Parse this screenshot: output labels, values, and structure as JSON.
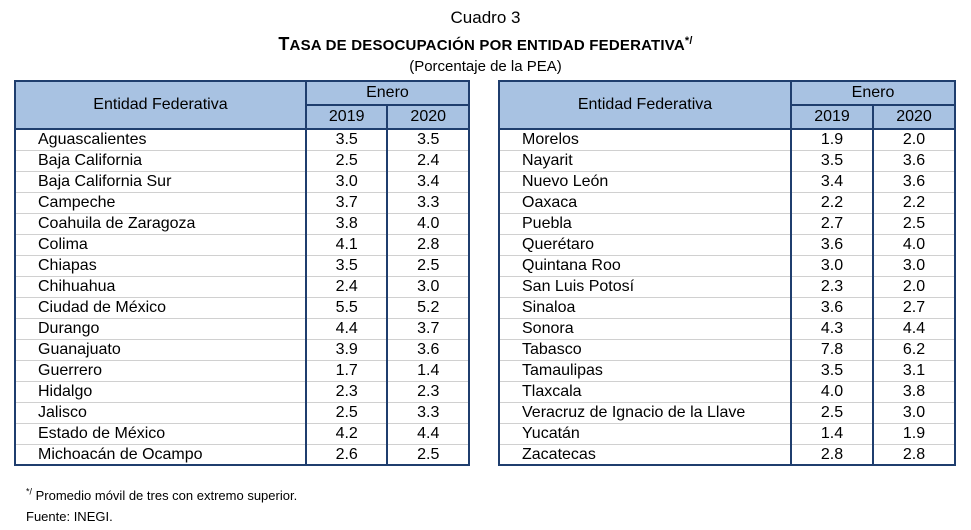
{
  "header": {
    "table_number": "Cuadro 3",
    "title_first": "T",
    "title_rest": "ASA DE DESOCUPACIÓN POR ENTIDAD FEDERATIVA",
    "title_mark": "*/",
    "subtitle": "(Porcentaje de la PEA)"
  },
  "columns": {
    "entity": "Entidad Federativa",
    "period": "Enero",
    "year1": "2019",
    "year2": "2020"
  },
  "colors": {
    "header_fill": "#a8c2e2",
    "border": "#1f3e6e"
  },
  "left_rows": [
    [
      "Aguascalientes",
      "3.5",
      "3.5"
    ],
    [
      "Baja California",
      "2.5",
      "2.4"
    ],
    [
      "Baja California Sur",
      "3.0",
      "3.4"
    ],
    [
      "Campeche",
      "3.7",
      "3.3"
    ],
    [
      "Coahuila de Zaragoza",
      "3.8",
      "4.0"
    ],
    [
      "Colima",
      "4.1",
      "2.8"
    ],
    [
      "Chiapas",
      "3.5",
      "2.5"
    ],
    [
      "Chihuahua",
      "2.4",
      "3.0"
    ],
    [
      "Ciudad de México",
      "5.5",
      "5.2"
    ],
    [
      "Durango",
      "4.4",
      "3.7"
    ],
    [
      "Guanajuato",
      "3.9",
      "3.6"
    ],
    [
      "Guerrero",
      "1.7",
      "1.4"
    ],
    [
      "Hidalgo",
      "2.3",
      "2.3"
    ],
    [
      "Jalisco",
      "2.5",
      "3.3"
    ],
    [
      "Estado de México",
      "4.2",
      "4.4"
    ],
    [
      "Michoacán de Ocampo",
      "2.6",
      "2.5"
    ]
  ],
  "right_rows": [
    [
      "Morelos",
      "1.9",
      "2.0"
    ],
    [
      "Nayarit",
      "3.5",
      "3.6"
    ],
    [
      "Nuevo León",
      "3.4",
      "3.6"
    ],
    [
      "Oaxaca",
      "2.2",
      "2.2"
    ],
    [
      "Puebla",
      "2.7",
      "2.5"
    ],
    [
      "Querétaro",
      "3.6",
      "4.0"
    ],
    [
      "Quintana Roo",
      "3.0",
      "3.0"
    ],
    [
      "San Luis Potosí",
      "2.3",
      "2.0"
    ],
    [
      "Sinaloa",
      "3.6",
      "2.7"
    ],
    [
      "Sonora",
      "4.3",
      "4.4"
    ],
    [
      "Tabasco",
      "7.8",
      "6.2"
    ],
    [
      "Tamaulipas",
      "3.5",
      "3.1"
    ],
    [
      "Tlaxcala",
      "4.0",
      "3.8"
    ],
    [
      "Veracruz de Ignacio de la Llave",
      "2.5",
      "3.0"
    ],
    [
      "Yucatán",
      "1.4",
      "1.9"
    ],
    [
      "Zacatecas",
      "2.8",
      "2.8"
    ]
  ],
  "footer": {
    "note_mark": "*/",
    "note": " Promedio móvil de tres con extremo superior.",
    "source": "Fuente: INEGI."
  }
}
